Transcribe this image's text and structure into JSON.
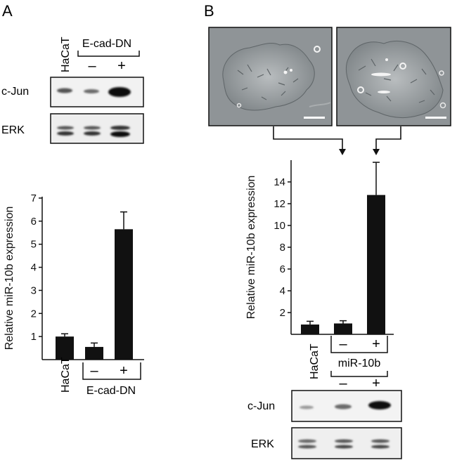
{
  "panels": {
    "a": {
      "letter": "A"
    },
    "b": {
      "letter": "B"
    }
  },
  "blot_a": {
    "haCaT": "HaCaT",
    "group": "E-cad-DN",
    "minus": "–",
    "plus": "+",
    "rows": [
      "c-Jun",
      "ERK"
    ]
  },
  "blot_b": {
    "haCaT": "HaCaT",
    "group": "miR-10b",
    "minus": "–",
    "plus": "+",
    "rows": [
      "c-Jun",
      "ERK"
    ]
  },
  "colors": {
    "bar": "#111111",
    "axis": "#111111",
    "micro_bg": "#8f9497"
  },
  "chart_data": [
    {
      "type": "bar",
      "ylabel": "Relative miR-10b expression",
      "ylim": [
        0,
        7
      ],
      "yticks": [
        1,
        2,
        3,
        4,
        5,
        6,
        7
      ],
      "categories": [
        "HaCaT",
        "E-cad-DN –",
        "E-cad-DN +"
      ],
      "values": [
        1.0,
        0.55,
        5.65
      ],
      "errors": [
        0.12,
        0.17,
        0.75
      ],
      "xlabels": {
        "first": "HaCaT",
        "group": "E-cad-DN",
        "minus": "–",
        "plus": "+"
      }
    },
    {
      "type": "bar",
      "ylabel": "Relative miR-10b expression",
      "ylim": [
        0,
        16
      ],
      "yticks": [
        2,
        4,
        6,
        8,
        10,
        12,
        14
      ],
      "categories": [
        "HaCaT",
        "miR-10b –",
        "miR-10b +"
      ],
      "values": [
        0.9,
        1.0,
        12.8
      ],
      "errors": [
        0.3,
        0.25,
        3.0
      ]
    }
  ]
}
